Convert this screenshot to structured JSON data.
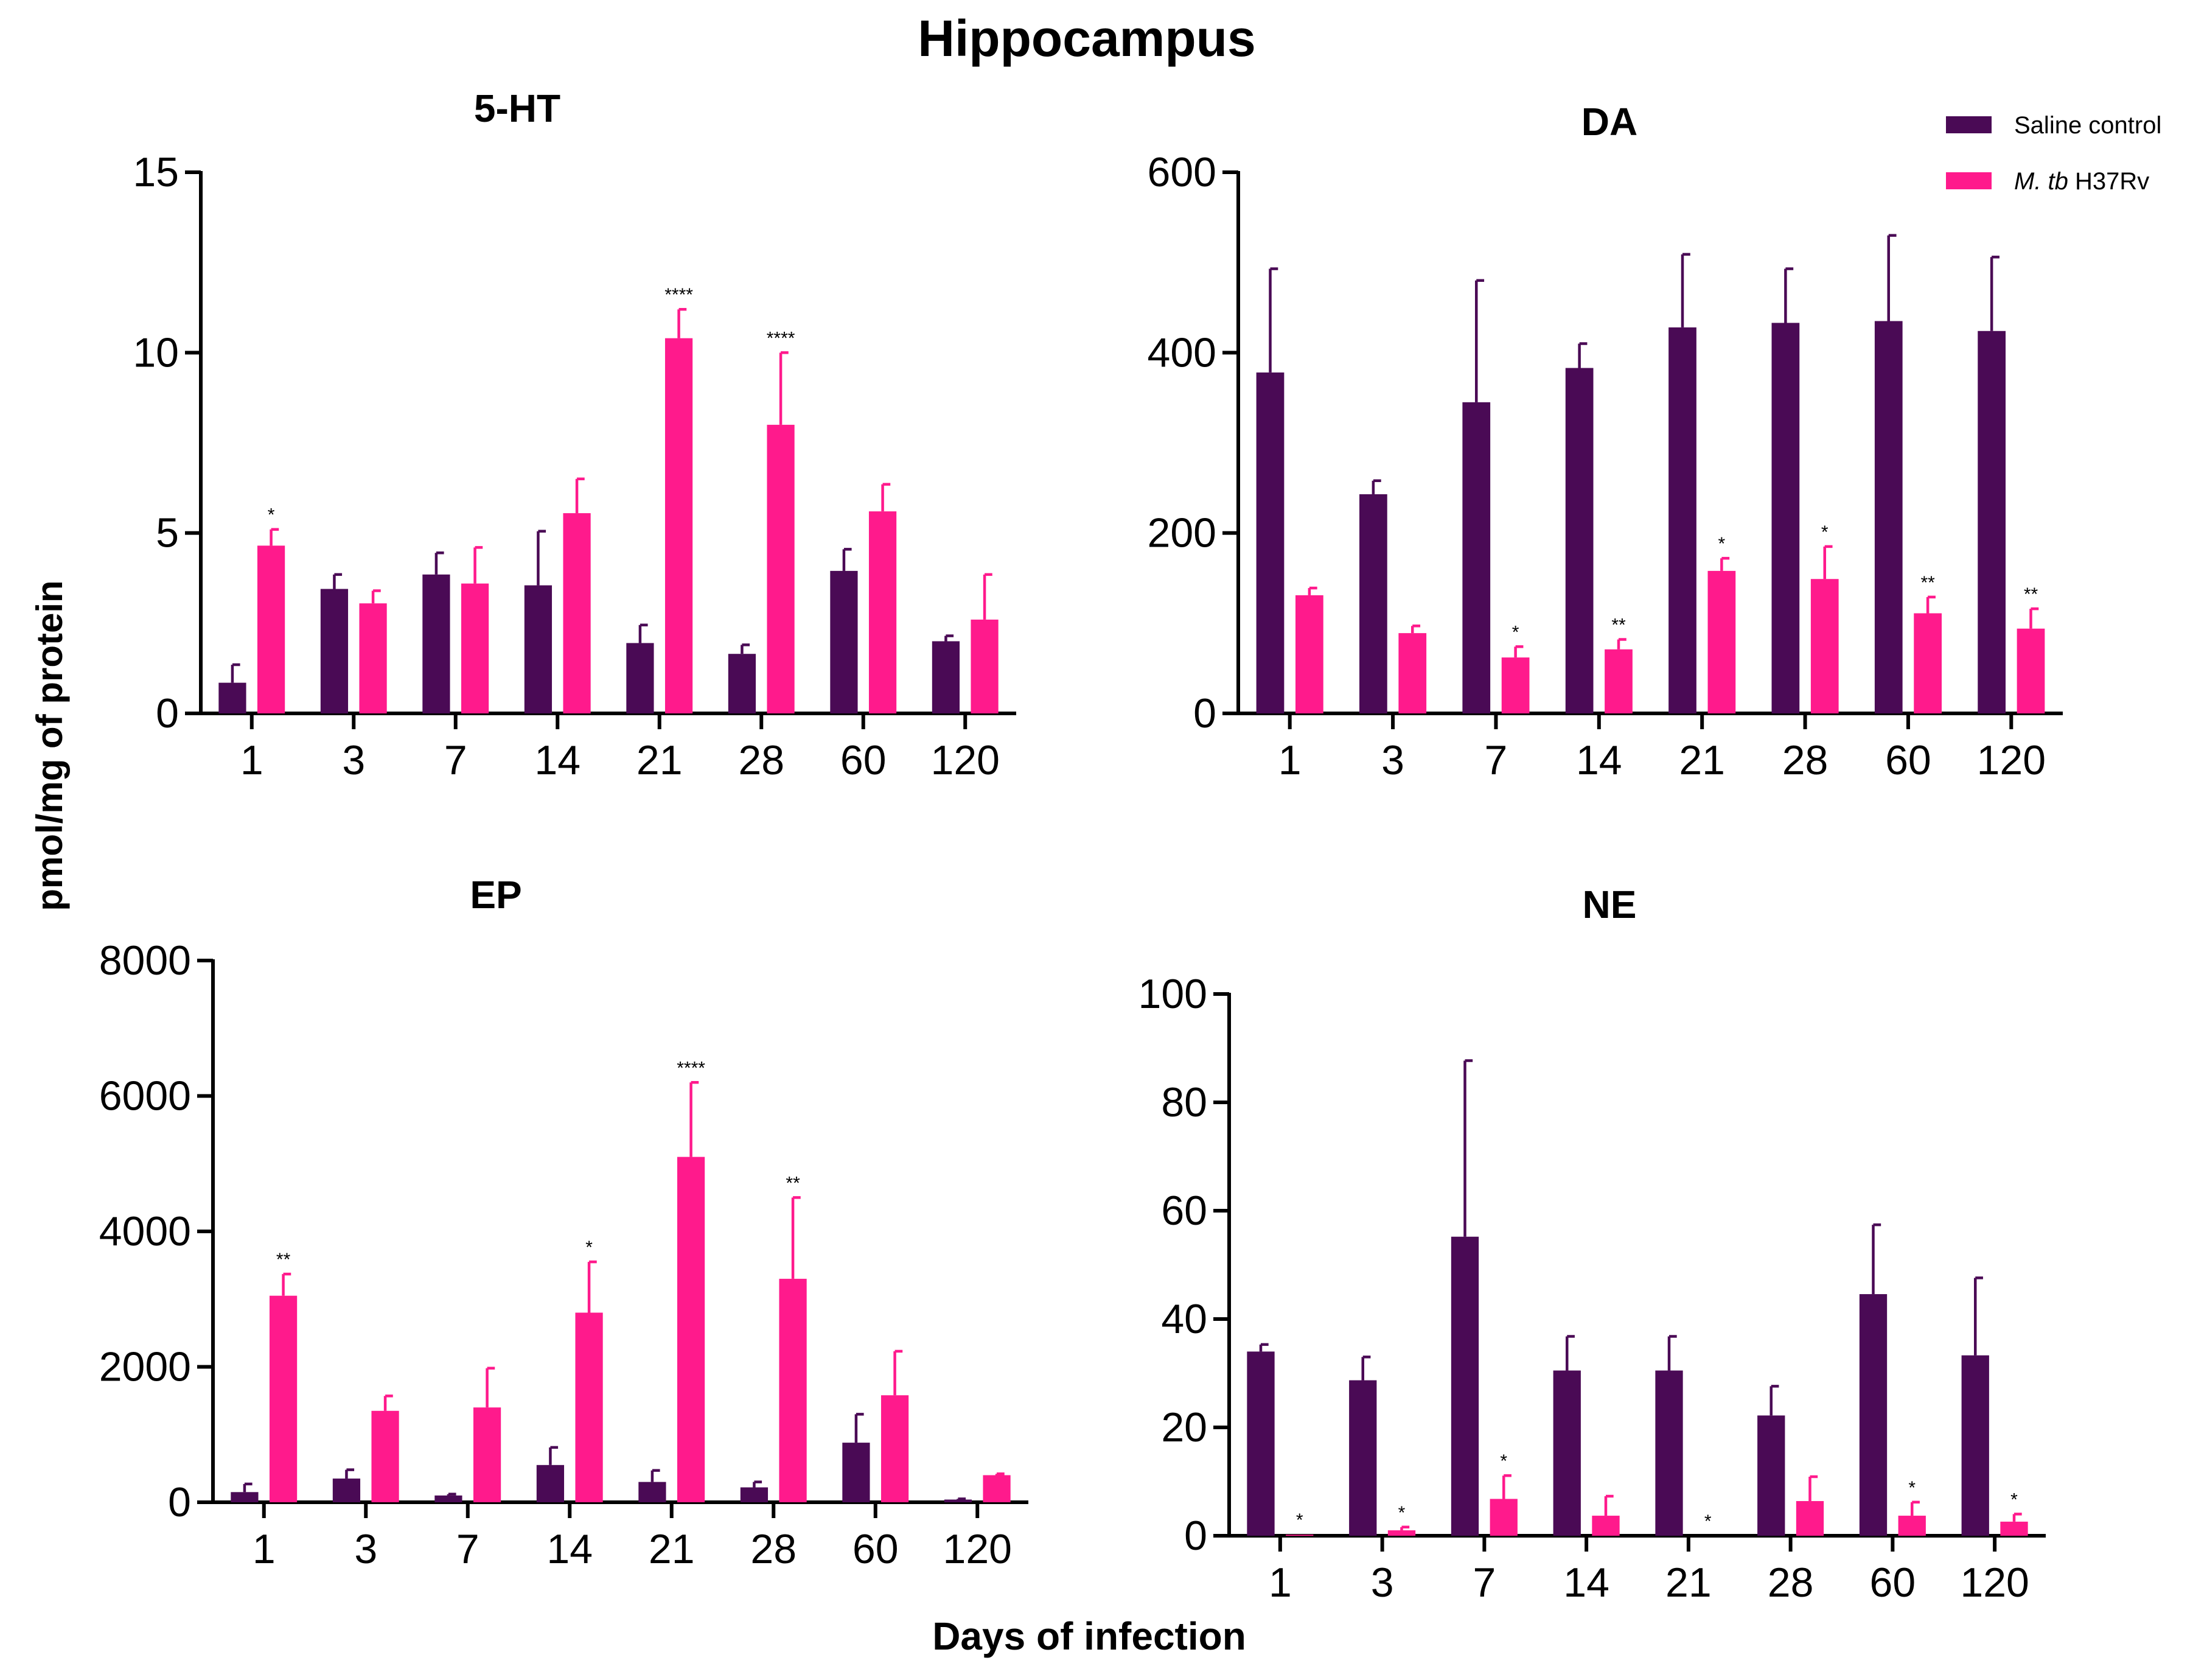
{
  "chart_data": {
    "title": "Hippocampus",
    "ylabel": "pmol/mg of protein",
    "xlabel": "Days of infection",
    "legend": {
      "position": "top-right",
      "items": [
        {
          "parts": [
            {
              "text": "Saline control",
              "italic": false
            }
          ],
          "color": "#4a0a55"
        },
        {
          "parts": [
            {
              "text": "M. tb",
              "italic": true
            },
            {
              "text": " H37Rv",
              "italic": false
            }
          ],
          "color": "#ff1a8c"
        }
      ]
    },
    "colors": {
      "saline": "#4a0a55",
      "mtb": "#ff1a8c"
    },
    "charts": [
      {
        "type": "bar",
        "title": "5-HT",
        "categories": [
          "1",
          "3",
          "7",
          "14",
          "21",
          "28",
          "60",
          "120"
        ],
        "ylim": [
          0,
          15
        ],
        "yticks": [
          0,
          5,
          10,
          15
        ],
        "series": [
          {
            "name": "Saline control",
            "values": [
              0.85,
              3.45,
              3.85,
              3.55,
              1.95,
              1.65,
              3.95,
              2.0
            ],
            "errors": [
              0.5,
              0.4,
              0.6,
              1.5,
              0.5,
              0.25,
              0.6,
              0.15
            ]
          },
          {
            "name": "M. tb H37Rv",
            "values": [
              4.65,
              3.05,
              3.6,
              5.55,
              10.4,
              8.0,
              5.6,
              2.6
            ],
            "errors": [
              0.45,
              0.35,
              1.0,
              0.95,
              0.8,
              2.0,
              0.75,
              1.25
            ],
            "annotations": [
              "*",
              "",
              "",
              "",
              "****",
              "****",
              "",
              ""
            ]
          }
        ]
      },
      {
        "type": "bar",
        "title": "DA",
        "categories": [
          "1",
          "3",
          "7",
          "14",
          "21",
          "28",
          "60",
          "120"
        ],
        "ylim": [
          0,
          600
        ],
        "yticks": [
          0,
          200,
          400,
          600
        ],
        "series": [
          {
            "name": "Saline control",
            "values": [
              378,
              243,
              345,
              383,
              428,
              433,
              435,
              424
            ],
            "errors": [
              115,
              15,
              135,
              27,
              81,
              60,
              95,
              82
            ]
          },
          {
            "name": "M. tb H37Rv",
            "values": [
              131,
              89,
              62,
              71,
              158,
              149,
              111,
              94
            ],
            "errors": [
              8,
              8,
              12,
              11,
              14,
              36,
              18,
              22
            ],
            "annotations": [
              "",
              "",
              "*",
              "**",
              "*",
              "*",
              "**",
              "**"
            ]
          }
        ]
      },
      {
        "type": "bar",
        "title": "EP",
        "categories": [
          "1",
          "3",
          "7",
          "14",
          "21",
          "28",
          "60",
          "120"
        ],
        "ylim": [
          0,
          8000
        ],
        "yticks": [
          0,
          2000,
          4000,
          6000,
          8000
        ],
        "series": [
          {
            "name": "Saline control",
            "values": [
              150,
              350,
              100,
              550,
              300,
              220,
              880,
              40
            ],
            "errors": [
              120,
              130,
              20,
              260,
              170,
              80,
              420,
              10
            ]
          },
          {
            "name": "M. tb H37Rv",
            "values": [
              3050,
              1350,
              1400,
              2800,
              5100,
              3300,
              1580,
              400
            ],
            "errors": [
              320,
              220,
              580,
              750,
              1100,
              1200,
              650,
              20
            ],
            "annotations": [
              "**",
              "",
              "",
              "*",
              "****",
              "**",
              "",
              ""
            ]
          }
        ]
      },
      {
        "type": "bar",
        "title": "NE",
        "categories": [
          "1",
          "3",
          "7",
          "14",
          "21",
          "28",
          "60",
          "120"
        ],
        "ylim": [
          0,
          100
        ],
        "yticks": [
          0,
          20,
          40,
          60,
          80,
          100
        ],
        "series": [
          {
            "name": "Saline control",
            "values": [
              34,
              28.7,
              55.2,
              30.5,
              30.5,
              22.2,
              44.6,
              33.3
            ],
            "errors": [
              1.3,
              4.3,
              32.5,
              6.3,
              6.3,
              5.4,
              12.8,
              14.3
            ]
          },
          {
            "name": "M. tb H37Rv",
            "values": [
              0.2,
              1.0,
              6.8,
              3.7,
              0,
              6.4,
              3.7,
              2.6
            ],
            "errors": [
              0,
              0.6,
              4.3,
              3.6,
              0,
              4.5,
              2.5,
              1.4
            ],
            "annotations": [
              "*",
              "*",
              "*",
              "",
              "*",
              "",
              "*",
              "*"
            ]
          }
        ]
      }
    ]
  }
}
